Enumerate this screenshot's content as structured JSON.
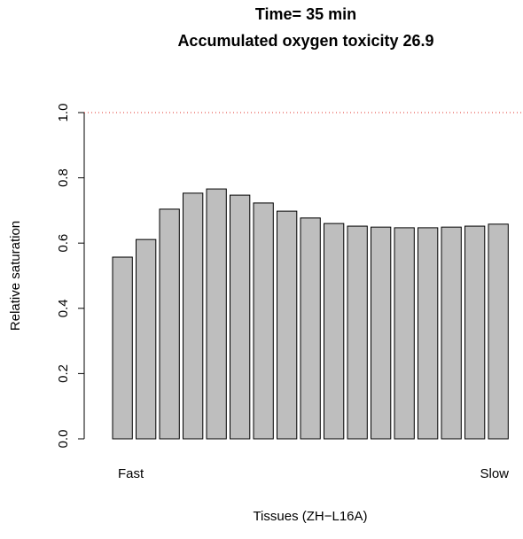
{
  "chart_data": {
    "type": "bar",
    "title": "Time= 35 min",
    "subtitle": "Accumulated oxygen toxicity 26.9",
    "x_label": "Tissues (ZH−L16A)",
    "y_label": "Relative saturation",
    "x_start_label": "Fast",
    "x_end_label": "Slow",
    "categories": [
      null,
      null,
      null,
      null,
      null,
      null,
      null,
      null,
      null,
      null,
      null,
      null,
      null,
      null,
      null,
      null,
      null
    ],
    "values": [
      0.557,
      0.611,
      0.704,
      0.753,
      0.766,
      0.747,
      0.723,
      0.698,
      0.677,
      0.66,
      0.652,
      0.649,
      0.647,
      0.647,
      0.649,
      0.652,
      0.658
    ],
    "color": "#bebebe",
    "reference_line": 1,
    "reference_color": "#e0302a",
    "ylim": [
      0,
      1
    ],
    "yticks": [
      {
        "value": 0,
        "label": "0.0"
      },
      0.2,
      0.4,
      0.6,
      0.8,
      {
        "value": 1,
        "label": "1.0"
      }
    ]
  }
}
